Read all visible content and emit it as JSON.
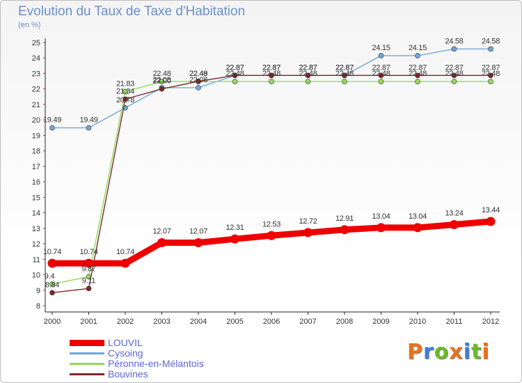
{
  "title": "Evolution du Taux de Taxe d'Habitation",
  "subtitle": "(en %)",
  "logo_text": "Proxiti",
  "logo_colors": [
    "#e6731c",
    "#3b7fd4",
    "#6ab82a",
    "#e6731c",
    "#3b7fd4",
    "#6ab82a",
    "#e6731c"
  ],
  "chart_data": {
    "type": "line",
    "x": [
      "2000",
      "2001",
      "2002",
      "2003",
      "2004",
      "2005",
      "2006",
      "2007",
      "2008",
      "2009",
      "2010",
      "2011",
      "2012"
    ],
    "ylim": [
      8,
      25
    ],
    "yticks": [
      "8",
      "9",
      "10",
      "11",
      "12",
      "13",
      "14",
      "15",
      "16",
      "17",
      "18",
      "19",
      "20",
      "21",
      "22",
      "23",
      "24",
      "25"
    ],
    "grid": false,
    "legend_placement": "bottom-left",
    "series": [
      {
        "name": "LOUVIL",
        "color": "#ee0000",
        "values": [
          10.74,
          10.74,
          10.74,
          12.07,
          12.07,
          12.31,
          12.53,
          12.72,
          12.91,
          13.04,
          13.04,
          13.24,
          13.44
        ],
        "labels": [
          "10.74",
          "10.74",
          "10.74",
          "12.07",
          "12.07",
          "12.31",
          "12.53",
          "12.72",
          "12.91",
          "13.04",
          "13.04",
          "13.24",
          "13.44"
        ]
      },
      {
        "name": "Cysoing",
        "color": "#6fa7dc",
        "values": [
          19.49,
          19.49,
          20.78,
          22.08,
          22.08,
          22.87,
          22.87,
          22.87,
          22.87,
          24.15,
          24.15,
          24.58,
          24.58
        ],
        "labels": [
          "19.49",
          "19.49",
          "20.78",
          "22.08",
          "22.08",
          "22.87",
          "22.87",
          "22.87",
          "22.87",
          "24.15",
          "24.15",
          "24.58",
          "24.58"
        ]
      },
      {
        "name": "Péronne-en-Mélantois",
        "color": "#8fdb5c",
        "values": [
          9.4,
          9.87,
          21.83,
          22.48,
          22.48,
          22.48,
          22.48,
          22.48,
          22.48,
          22.48,
          22.48,
          22.48,
          22.48
        ],
        "labels": [
          "9.4",
          "9.87",
          "21.83",
          "22.48",
          "22.48",
          "22.48",
          "22.48",
          "22.48",
          "22.48",
          "22.48",
          "22.48",
          "22.48",
          "22.48"
        ]
      },
      {
        "name": "Bouvines",
        "color": "#7a2a2a",
        "values": [
          8.84,
          9.11,
          21.34,
          22.0,
          22.49,
          22.87,
          22.87,
          22.87,
          22.87,
          22.87,
          22.87,
          22.87,
          22.87
        ],
        "labels": [
          "8.84",
          "9.11",
          "21.34",
          "22.00",
          "22.49",
          "22.87",
          "22.87",
          "22.87",
          "22.87",
          "22.87",
          "22.87",
          "22.87",
          "22.87"
        ]
      }
    ]
  }
}
